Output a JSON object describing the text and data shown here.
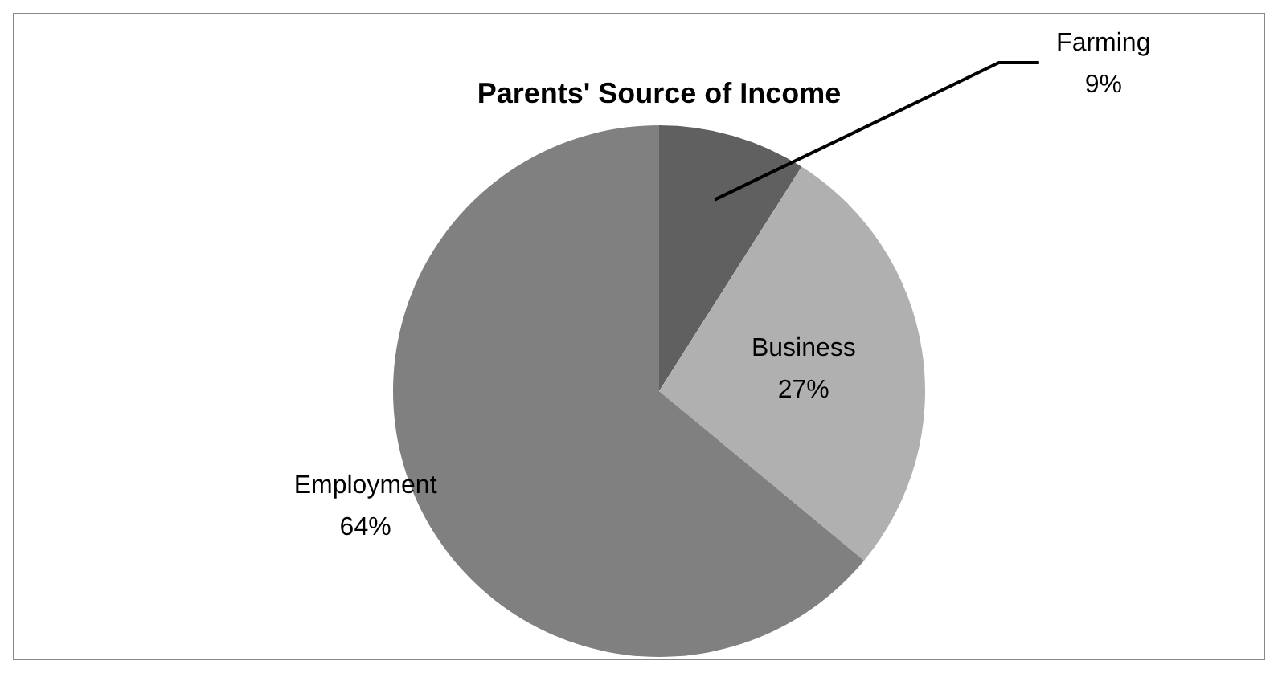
{
  "chart_data": {
    "type": "pie",
    "title": "Parents' Source of Income",
    "categories": [
      "Farming",
      "Business",
      "Employment"
    ],
    "values": [
      9,
      27,
      64
    ],
    "colors": [
      "#606060",
      "#b0b0b0",
      "#808080"
    ],
    "value_labels": [
      "9%",
      "27%",
      "64%"
    ],
    "legend": false
  }
}
